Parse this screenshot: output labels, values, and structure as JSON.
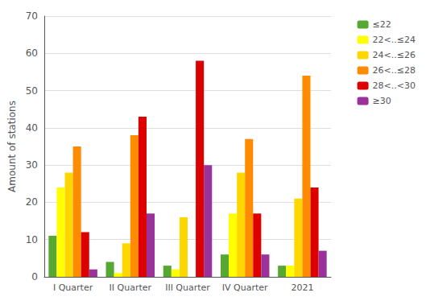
{
  "chart_data": {
    "type": "bar",
    "ylabel": "Amount of stations",
    "categories": [
      "I Quarter",
      "II Quarter",
      "III Quarter",
      "IV Quarter",
      "2021"
    ],
    "series": [
      {
        "name": "≤22",
        "color": "#56a832",
        "values": [
          11,
          4,
          3,
          6,
          3
        ]
      },
      {
        "name": "22<..≤24",
        "color": "#ffff00",
        "values": [
          24,
          1,
          2,
          17,
          3
        ]
      },
      {
        "name": "24<..≤26",
        "color": "#ffd700",
        "values": [
          28,
          9,
          16,
          28,
          21
        ]
      },
      {
        "name": "26<..≤28",
        "color": "#ff8c00",
        "values": [
          35,
          38,
          0,
          37,
          54
        ]
      },
      {
        "name": "28<..<30",
        "color": "#dd0000",
        "values": [
          12,
          43,
          58,
          17,
          24
        ]
      },
      {
        "name": "≥30",
        "color": "#993399",
        "values": [
          2,
          17,
          30,
          6,
          7
        ]
      }
    ],
    "ylim": [
      0,
      70
    ],
    "yticks": [
      0,
      10,
      20,
      30,
      40,
      50,
      60,
      70
    ],
    "grid": true,
    "legend": "upper right"
  }
}
